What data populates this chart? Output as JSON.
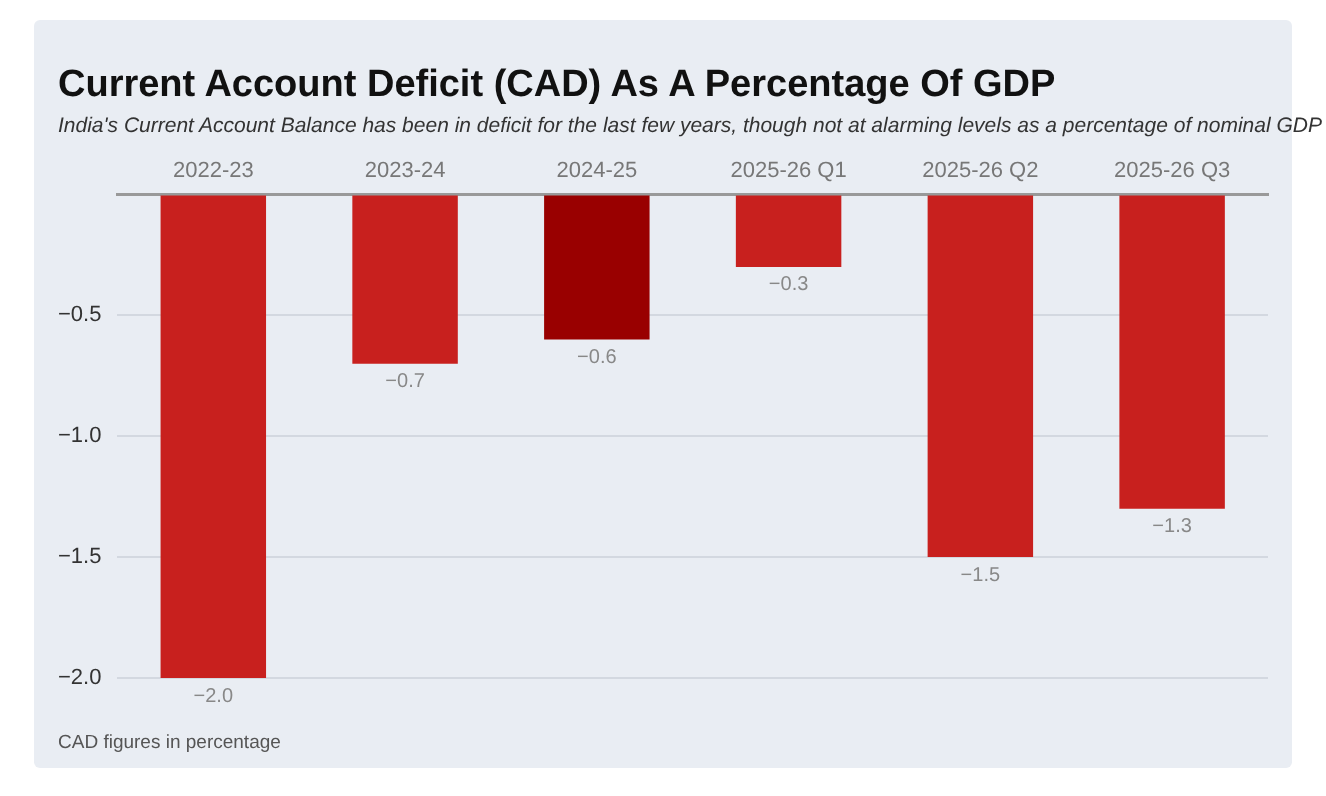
{
  "chart_data": {
    "type": "bar",
    "title": "Current Account Deficit (CAD) As A Percentage Of GDP",
    "subtitle": "India's Current Account Balance has been in deficit for the last few years, though not at alarming levels as a percentage of nominal GDP",
    "categories": [
      "2022-23",
      "2023-24",
      "2024-25",
      "2025-26 Q1",
      "2025-26 Q2",
      "2025-26 Q3"
    ],
    "values": [
      -2.0,
      -0.7,
      -0.6,
      -0.3,
      -1.5,
      -1.3
    ],
    "colors": [
      "#c8201e",
      "#c8201e",
      "#990000",
      "#c8201e",
      "#c8201e",
      "#c8201e"
    ],
    "value_labels": [
      "−2.0",
      "−0.7",
      "−0.6",
      "−0.3",
      "−1.5",
      "−1.3"
    ],
    "ylim": [
      -2.0,
      0
    ],
    "yticks": [
      {
        "value": 0,
        "label": null
      },
      {
        "value": -0.5,
        "label": "−0.5"
      },
      {
        "value": -1.0,
        "label": "−1.0"
      },
      {
        "value": -1.5,
        "label": "−1.5"
      },
      {
        "value": -2.0,
        "label": "−2.0"
      }
    ],
    "grid": "y",
    "legend": false,
    "annotations": [
      "CAD figures in percentage"
    ]
  }
}
